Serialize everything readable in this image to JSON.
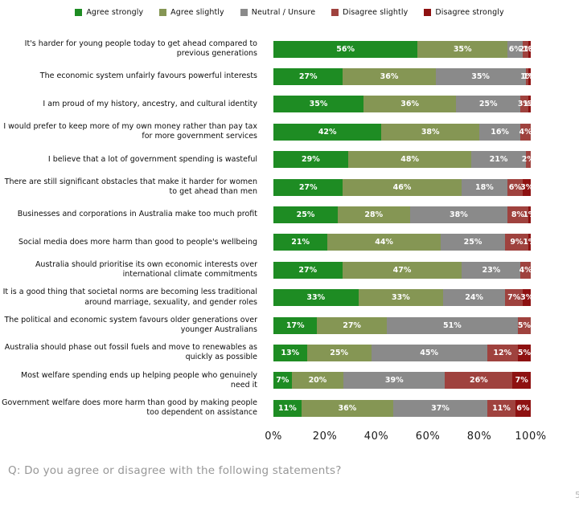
{
  "legend": [
    {
      "label": "Agree strongly",
      "color": "#1e8c23"
    },
    {
      "label": "Agree slightly",
      "color": "#859654"
    },
    {
      "label": "Neutral / Unsure",
      "color": "#8a8a8a"
    },
    {
      "label": "Disagree slightly",
      "color": "#9f423e"
    },
    {
      "label": "Disagree strongly",
      "color": "#8e1111"
    }
  ],
  "chart_data": {
    "type": "bar",
    "variant": "horizontal-stacked-100",
    "series_names": [
      "Agree strongly",
      "Agree slightly",
      "Neutral / Unsure",
      "Disagree slightly",
      "Disagree strongly"
    ],
    "series_colors": [
      "#1e8c23",
      "#859654",
      "#8a8a8a",
      "#9f423e",
      "#8e1111"
    ],
    "xlim": [
      0,
      100
    ],
    "x_ticks": [
      "0%",
      "20%",
      "40%",
      "60%",
      "80%",
      "100%"
    ],
    "grid": false,
    "legend_position": "top",
    "rows": [
      {
        "label": "It's harder for young people today to get ahead compared to previous generations",
        "values": [
          56,
          35,
          6,
          2,
          1
        ]
      },
      {
        "label": "The economic system unfairly favours powerful interests",
        "values": [
          27,
          36,
          35,
          1,
          1
        ]
      },
      {
        "label": "I am proud of my history, ancestry, and cultural identity",
        "values": [
          35,
          36,
          25,
          3,
          1
        ]
      },
      {
        "label": "I would prefer to keep more of my own money rather than pay tax for more government services",
        "values": [
          42,
          38,
          16,
          4,
          0
        ]
      },
      {
        "label": "I believe that a lot of government spending is wasteful",
        "values": [
          29,
          48,
          21,
          2,
          0
        ]
      },
      {
        "label": "There are still significant obstacles that make it harder for women to get ahead than men",
        "values": [
          27,
          46,
          18,
          6,
          3
        ]
      },
      {
        "label": "Businesses and corporations in Australia make too much profit",
        "values": [
          25,
          28,
          38,
          8,
          1
        ]
      },
      {
        "label": "Social media does more harm than good to people's wellbeing",
        "values": [
          21,
          44,
          25,
          9,
          1
        ]
      },
      {
        "label": "Australia should prioritise its own economic interests over international climate commitments",
        "values": [
          27,
          47,
          23,
          4,
          0
        ]
      },
      {
        "label": "It is a good thing that societal norms are becoming less traditional around marriage, sexuality, and gender roles",
        "values": [
          33,
          33,
          24,
          7,
          3
        ]
      },
      {
        "label": "The political and economic system favours older generations over younger Australians",
        "values": [
          17,
          27,
          51,
          5,
          0
        ]
      },
      {
        "label": "Australia should phase out fossil fuels and move to renewables as quickly as possible",
        "values": [
          13,
          25,
          45,
          12,
          5
        ]
      },
      {
        "label": "Most welfare spending ends up helping people who genuinely need it",
        "values": [
          7,
          20,
          39,
          26,
          7
        ]
      },
      {
        "label": "Government welfare does more harm than good by making people too dependent on assistance",
        "values": [
          11,
          36,
          37,
          11,
          6
        ]
      }
    ]
  },
  "footer": {
    "question": "Q: Do you agree or disagree with the following statements?",
    "page_number": "5"
  }
}
